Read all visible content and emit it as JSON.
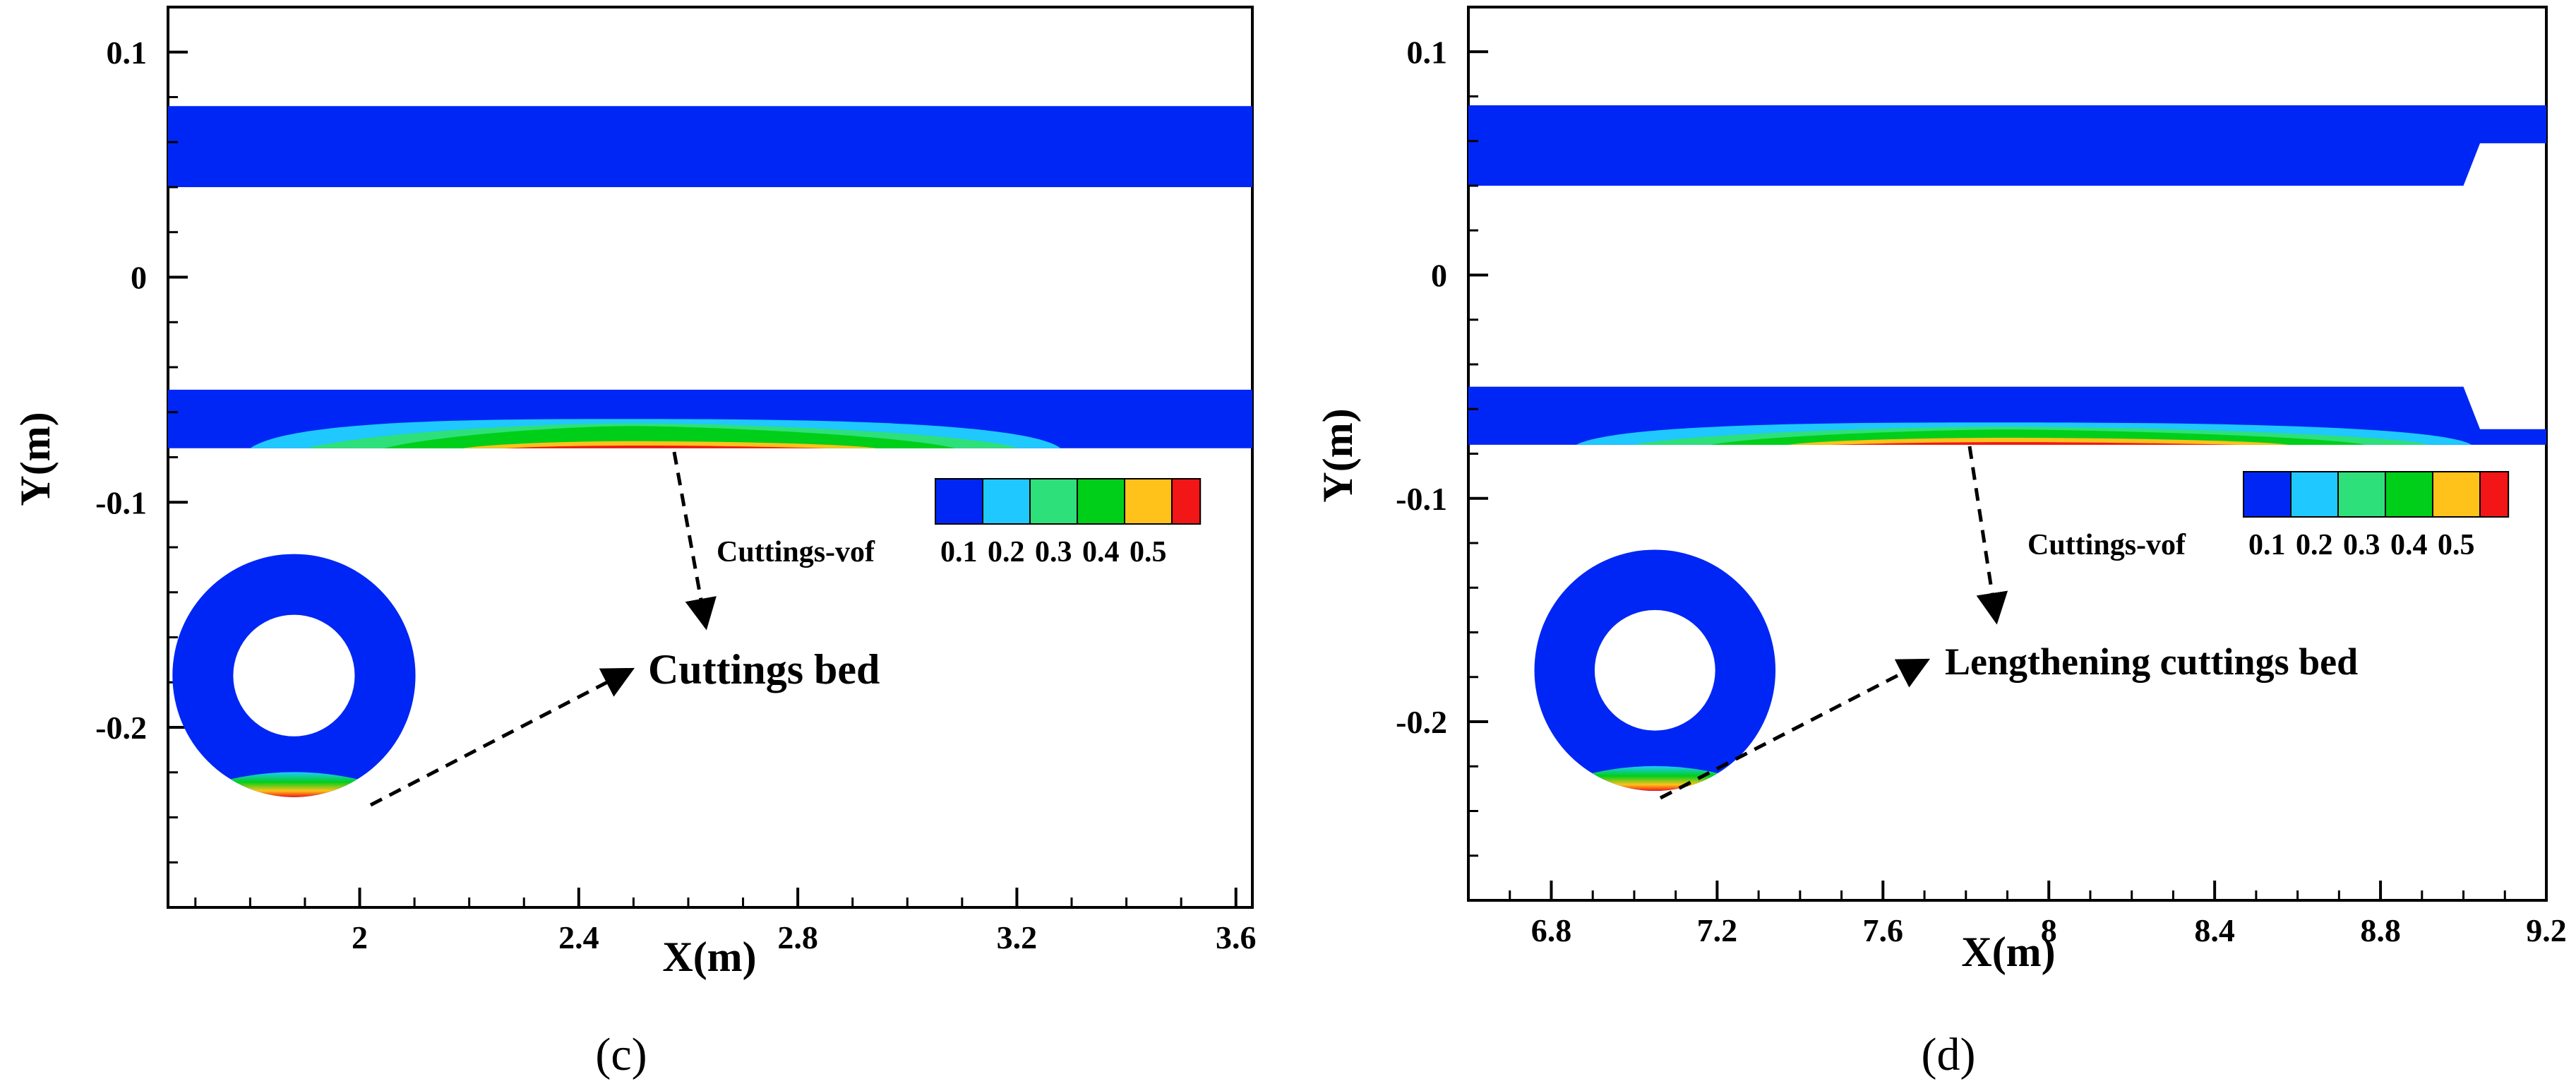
{
  "colors": {
    "flow": "#0026f5",
    "background": "#ffffff",
    "axis": "#000000",
    "legend": [
      "#0026f5",
      "#1fc8ff",
      "#2ee07a",
      "#00cf1a",
      "#ffc21a",
      "#f21616"
    ]
  },
  "chart_data": [
    {
      "type": "heatmap",
      "panel_label": "(c)",
      "xlabel": "X(m)",
      "ylabel": "Y(m)",
      "xlim": [
        1.65,
        3.63
      ],
      "ylim": [
        -0.28,
        0.12
      ],
      "xticks": [
        2,
        2.4,
        2.8,
        3.2,
        3.6
      ],
      "xtick_labels": [
        "2",
        "2.4",
        "2.8",
        "3.2",
        "3.6"
      ],
      "yticks": [
        0.1,
        0,
        -0.1,
        -0.2
      ],
      "ytick_labels": [
        "0.1",
        "0",
        "-0.1",
        "-0.2"
      ],
      "annular_bands": [
        {
          "name": "upper",
          "y_min": 0.04,
          "y_max": 0.076
        },
        {
          "name": "lower",
          "y_min": -0.076,
          "y_max": -0.05
        }
      ],
      "cuttings_bed": {
        "x_start": 1.8,
        "x_peak": 2.5,
        "x_end": 3.28,
        "y_top": -0.063,
        "y_bottom": -0.076
      },
      "legend": {
        "title": "Cuttings-vof",
        "levels": [
          "0.1",
          "0.2",
          "0.3",
          "0.4",
          "0.5"
        ]
      },
      "cross_section": {
        "center_x": 1.88,
        "center_y": -0.177,
        "outer_radius": 0.054,
        "inner_radius": 0.027
      },
      "annotation": "Cuttings bed"
    },
    {
      "type": "heatmap",
      "panel_label": "(d)",
      "xlabel": "X(m)",
      "ylabel": "Y(m)",
      "xlim": [
        6.6,
        9.2
      ],
      "ylim": [
        -0.28,
        0.12
      ],
      "xticks": [
        6.8,
        7.2,
        7.6,
        8,
        8.4,
        8.8,
        9.2
      ],
      "xtick_labels": [
        "6.8",
        "7.2",
        "7.6",
        "8",
        "8.4",
        "8.8",
        "9.2"
      ],
      "yticks": [
        0.1,
        0,
        -0.1,
        -0.2
      ],
      "ytick_labels": [
        "0.1",
        "0",
        "-0.1",
        "-0.2"
      ],
      "annular_bands": [
        {
          "name": "upper",
          "y_min": 0.04,
          "y_max": 0.076
        },
        {
          "name": "lower",
          "y_min": -0.076,
          "y_max": -0.05
        }
      ],
      "step_change": {
        "x_start": 9.0,
        "x_end": 9.04,
        "upper_y_min_after": 0.059,
        "lower_y_max_after": -0.069
      },
      "cuttings_bed": {
        "x_start": 6.86,
        "x_peak": 7.9,
        "x_end": 9.02,
        "y_top": -0.066,
        "y_bottom": -0.076
      },
      "legend": {
        "title": "Cuttings-vof",
        "levels": [
          "0.1",
          "0.2",
          "0.3",
          "0.4",
          "0.5"
        ]
      },
      "cross_section": {
        "center_x": 7.05,
        "center_y": -0.177,
        "outer_radius": 0.054,
        "inner_radius": 0.027
      },
      "annotation": "Lengthening cuttings bed"
    }
  ]
}
